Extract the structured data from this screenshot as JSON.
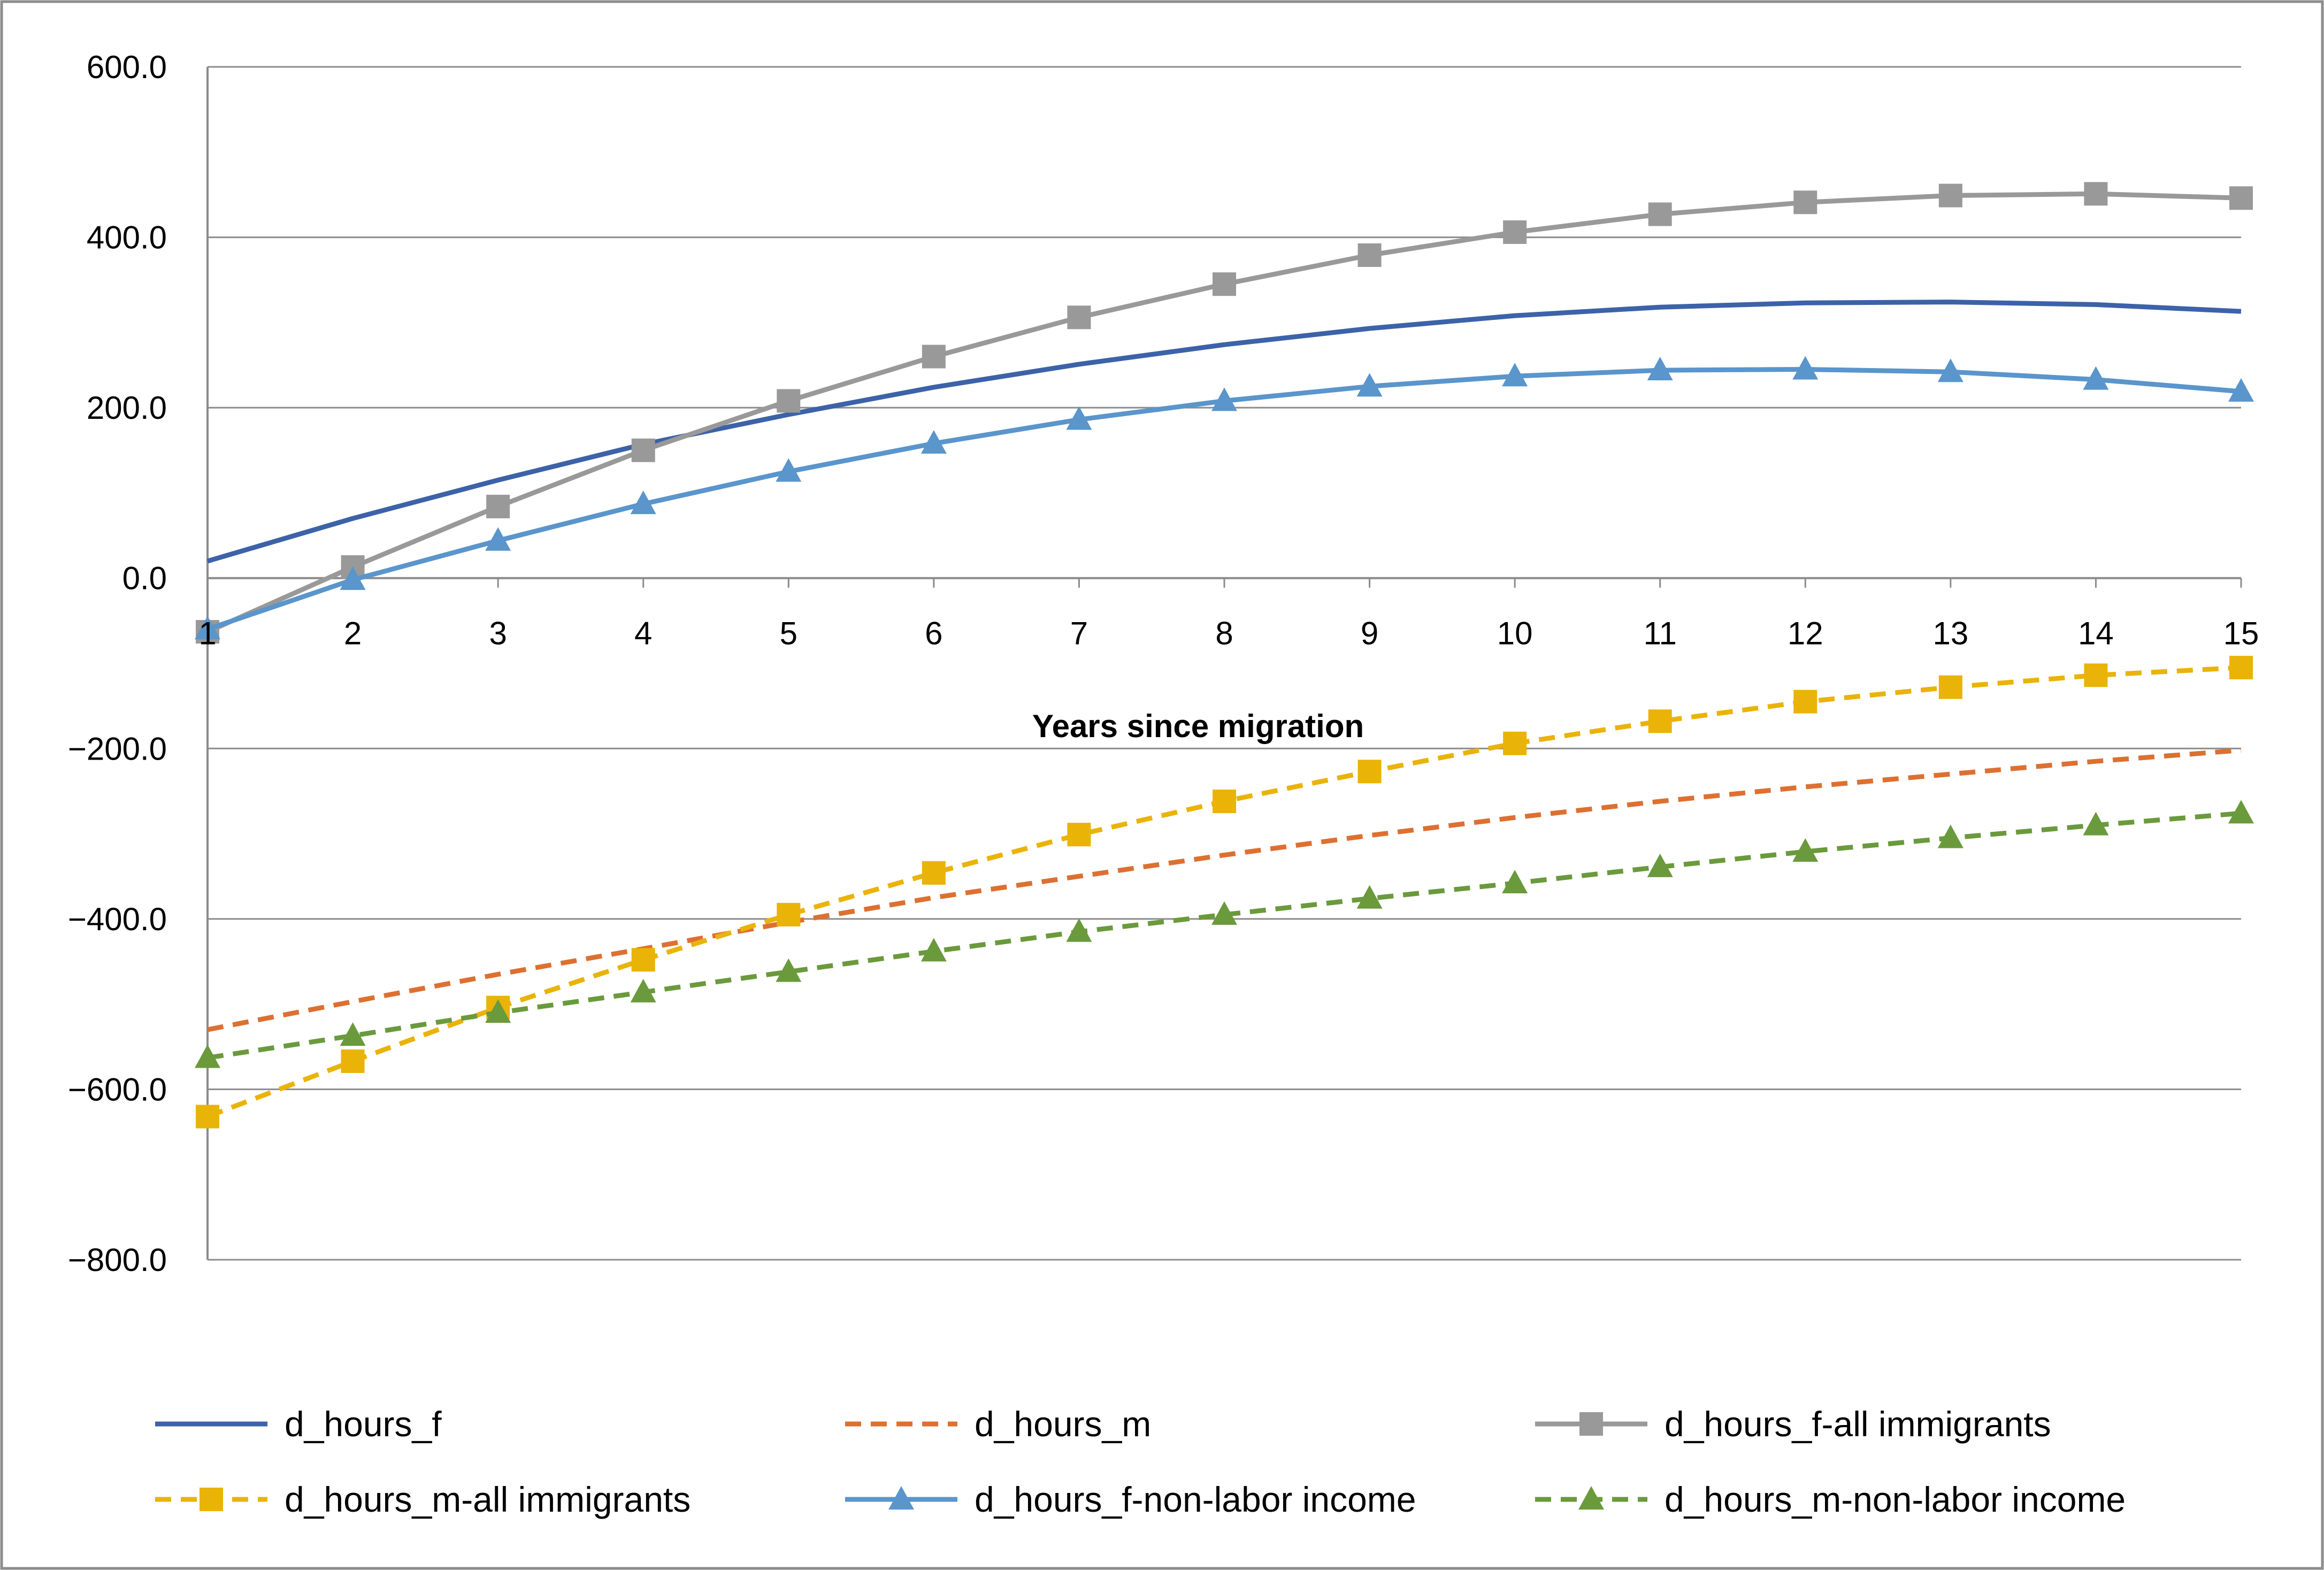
{
  "chart_data": {
    "type": "line",
    "title": "",
    "xlabel": "Years since migration",
    "ylabel": "",
    "ylim": [
      -800,
      600
    ],
    "ytick_step": 200,
    "y_tick_labels": [
      "600.0",
      "400.0",
      "200.0",
      "0.0",
      "−200.0",
      "−400.0",
      "−600.0",
      "−800.0"
    ],
    "grid": true,
    "legend_position": "bottom",
    "x": [
      1,
      2,
      3,
      4,
      5,
      6,
      7,
      8,
      9,
      10,
      11,
      12,
      13,
      14,
      15
    ],
    "x_tick_labels": [
      "1",
      "2",
      "3",
      "4",
      "5",
      "6",
      "7",
      "8",
      "9",
      "10",
      "11",
      "12",
      "13",
      "14",
      "15"
    ],
    "series": [
      {
        "name": "d_hours_f",
        "color": "#3c62a8",
        "dash": "solid",
        "marker": "none",
        "values": [
          20,
          70,
          115,
          157,
          192,
          224,
          251,
          274,
          293,
          308,
          318,
          323,
          324,
          321,
          313
        ]
      },
      {
        "name": "d_hours_m",
        "color": "#dd7031",
        "dash": "dashed",
        "marker": "none",
        "values": [
          -530,
          -497,
          -465,
          -435,
          -404,
          -375,
          -350,
          -325,
          -302,
          -281,
          -262,
          -245,
          -230,
          -215,
          -202
        ]
      },
      {
        "name": "d_hours_f-all immigrants",
        "color": "#999999",
        "dash": "solid",
        "marker": "square",
        "values": [
          -63,
          13,
          84,
          150,
          208,
          260,
          306,
          345,
          379,
          406,
          427,
          441,
          449,
          451,
          446
        ]
      },
      {
        "name": "d_hours_m-all immigrants",
        "color": "#eab308",
        "dash": "dashed",
        "marker": "square",
        "values": [
          -632,
          -567,
          -504,
          -448,
          -395,
          -346,
          -301,
          -262,
          -227,
          -194,
          -168,
          -145,
          -128,
          -114,
          -105
        ]
      },
      {
        "name": "d_hours_f-non-labor income",
        "color": "#5a95cc",
        "dash": "solid",
        "marker": "triangle",
        "values": [
          -60,
          -2,
          44,
          87,
          125,
          158,
          186,
          208,
          225,
          237,
          244,
          245,
          242,
          233,
          219
        ]
      },
      {
        "name": "d_hours_m-non-labor income",
        "color": "#6a9a3c",
        "dash": "dashed",
        "marker": "triangle",
        "values": [
          -563,
          -537,
          -510,
          -486,
          -462,
          -438,
          -415,
          -395,
          -376,
          -358,
          -339,
          -321,
          -305,
          -290,
          -276
        ]
      }
    ]
  }
}
